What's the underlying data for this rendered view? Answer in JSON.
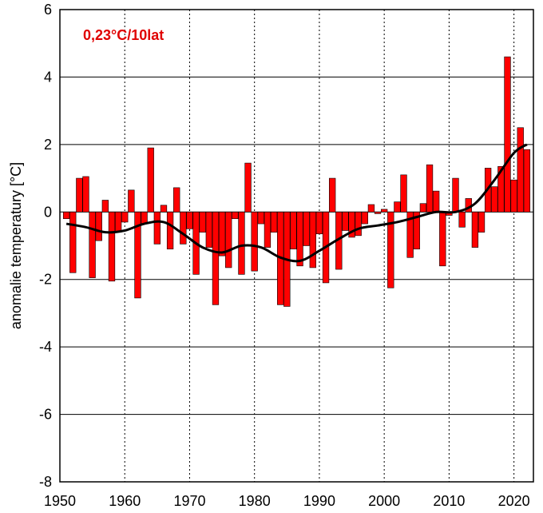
{
  "chart_data": {
    "type": "bar",
    "ylabel": "anomalie temperatury [°C]",
    "annotation": "0,23°C/10lat",
    "xlim": [
      1950,
      2023
    ],
    "ylim": [
      -8,
      6
    ],
    "yticks": [
      -8,
      -6,
      -4,
      -2,
      0,
      2,
      4,
      6
    ],
    "xticks": [
      1950,
      1960,
      1970,
      1980,
      1990,
      2000,
      2010,
      2020
    ],
    "grid": {
      "horizontal": "solid",
      "vertical": "dotted"
    },
    "colors": {
      "bar": "#ff0000",
      "bar_edge": "#000000",
      "trend": "#000000"
    },
    "x": [
      1951,
      1952,
      1953,
      1954,
      1955,
      1956,
      1957,
      1958,
      1959,
      1960,
      1961,
      1962,
      1963,
      1964,
      1965,
      1966,
      1967,
      1968,
      1969,
      1970,
      1971,
      1972,
      1973,
      1974,
      1975,
      1976,
      1977,
      1978,
      1979,
      1980,
      1981,
      1982,
      1983,
      1984,
      1985,
      1986,
      1987,
      1988,
      1989,
      1990,
      1991,
      1992,
      1993,
      1994,
      1995,
      1996,
      1997,
      1998,
      1999,
      2000,
      2001,
      2002,
      2003,
      2004,
      2005,
      2006,
      2007,
      2008,
      2009,
      2010,
      2011,
      2012,
      2013,
      2014,
      2015,
      2016,
      2017,
      2018,
      2019,
      2020,
      2021,
      2022
    ],
    "values": [
      -0.2,
      -1.8,
      1.0,
      1.05,
      -1.95,
      -0.85,
      0.35,
      -2.05,
      -0.6,
      -0.3,
      0.65,
      -2.55,
      -0.35,
      1.9,
      -0.95,
      0.2,
      -1.1,
      0.72,
      -0.95,
      -0.5,
      -1.85,
      -0.6,
      -1.05,
      -2.75,
      -1.3,
      -1.65,
      -0.2,
      -1.85,
      1.45,
      -1.75,
      -0.35,
      -1.05,
      -0.6,
      -2.75,
      -2.8,
      -1.1,
      -1.6,
      -1.0,
      -1.65,
      -0.65,
      -2.1,
      1.0,
      -1.7,
      -0.55,
      -0.75,
      -0.7,
      -0.35,
      0.22,
      -0.05,
      0.08,
      -2.25,
      0.3,
      1.1,
      -1.35,
      -1.1,
      0.25,
      1.4,
      0.62,
      -1.6,
      -0.1,
      1.0,
      -0.45,
      0.4,
      -1.05,
      -0.6,
      1.3,
      0.75,
      1.35,
      4.6,
      0.95,
      2.5,
      1.85
    ],
    "trend": {
      "x": [
        1951,
        1954,
        1957,
        1960,
        1963,
        1966,
        1969,
        1972,
        1975,
        1978,
        1981,
        1984,
        1987,
        1990,
        1993,
        1996,
        1999,
        2002,
        2005,
        2008,
        2011,
        2014,
        2017,
        2020,
        2022
      ],
      "y": [
        -0.35,
        -0.45,
        -0.6,
        -0.55,
        -0.35,
        -0.3,
        -0.65,
        -1.05,
        -1.2,
        -1.0,
        -1.05,
        -1.35,
        -1.45,
        -1.15,
        -0.8,
        -0.5,
        -0.4,
        -0.3,
        -0.15,
        0.0,
        0.0,
        0.25,
        0.95,
        1.75,
        2.0
      ]
    }
  }
}
